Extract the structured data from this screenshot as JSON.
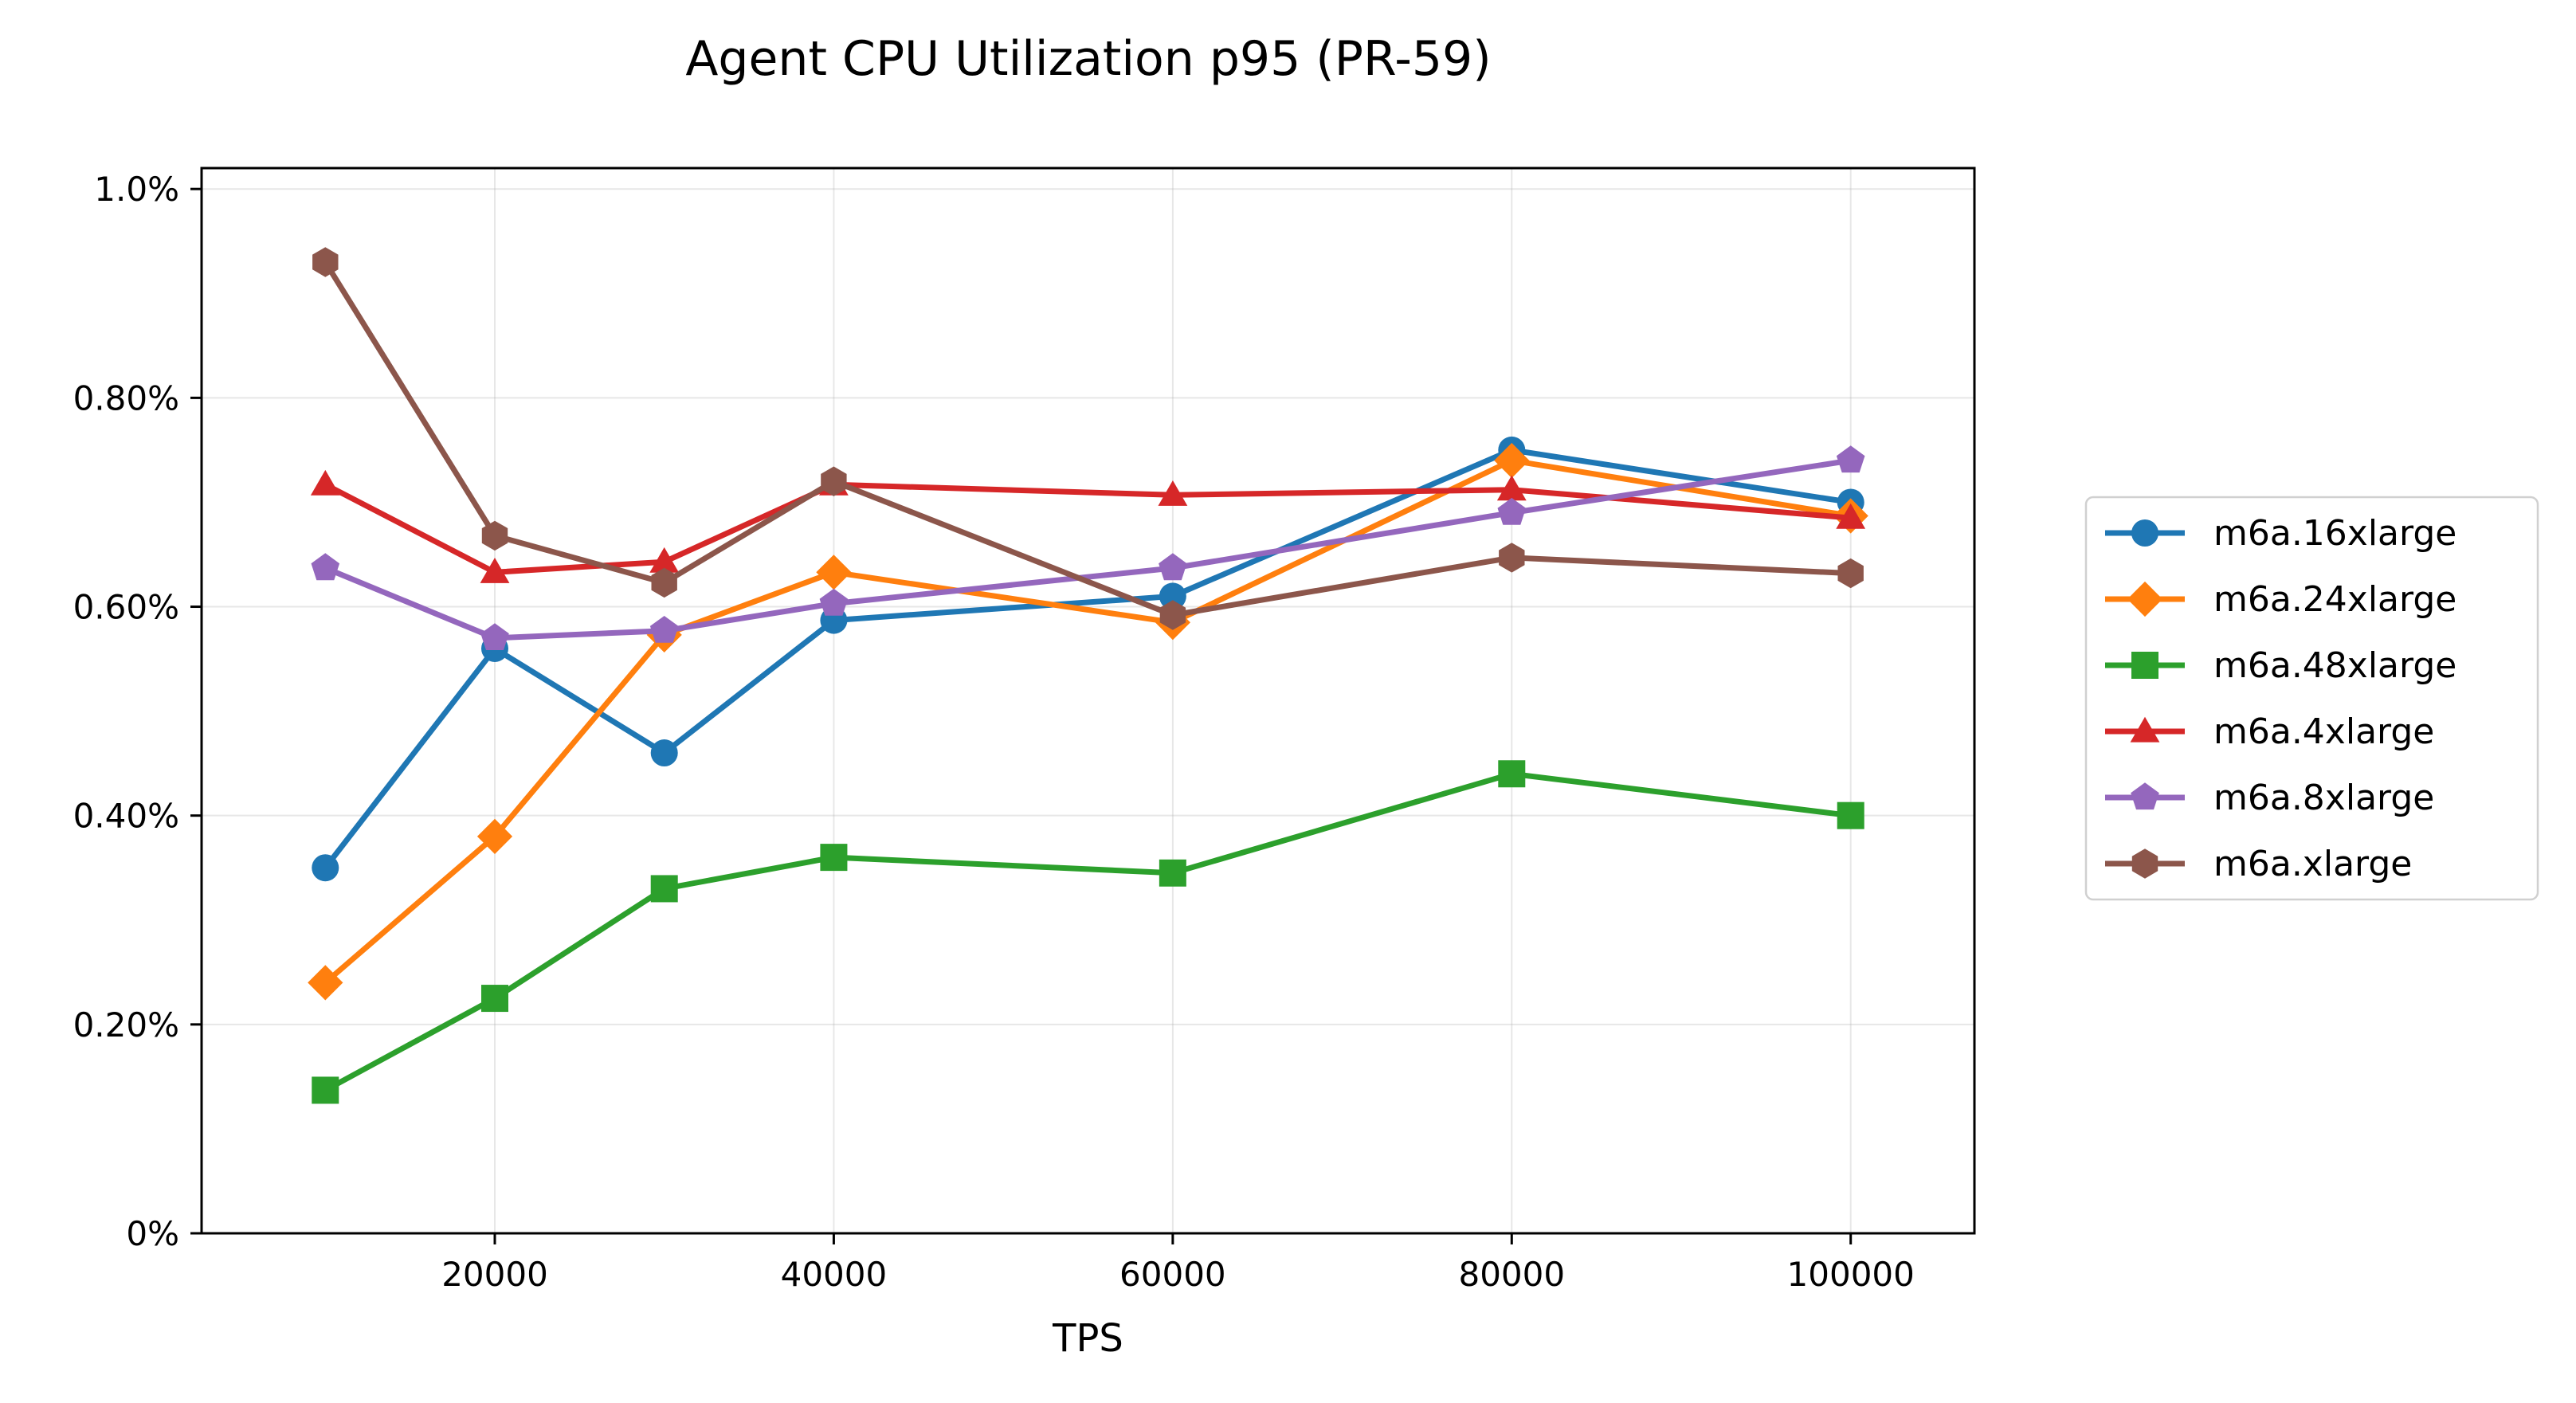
{
  "chart_data": {
    "type": "line",
    "title": "Agent CPU Utilization p95 (PR-59)",
    "xlabel": "TPS",
    "ylabel": "",
    "x": [
      10000,
      20000,
      30000,
      40000,
      60000,
      80000,
      100000
    ],
    "xlim": [
      2700,
      107300
    ],
    "ylim": [
      0,
      0.0102
    ],
    "xticks": [
      20000,
      40000,
      60000,
      80000,
      100000
    ],
    "xtick_labels": [
      "20000",
      "40000",
      "60000",
      "80000",
      "100000"
    ],
    "yticks": [
      0,
      0.002,
      0.004,
      0.006,
      0.008,
      0.01
    ],
    "ytick_labels": [
      "0%",
      "0.20%",
      "0.40%",
      "0.60%",
      "0.80%",
      "1.0%"
    ],
    "grid": true,
    "legend_position": "right, outside plot",
    "series": [
      {
        "name": "m6a.16xlarge",
        "color": "#1f77b4",
        "marker": "circle",
        "values": [
          0.0035,
          0.0056,
          0.0046,
          0.00587,
          0.0061,
          0.0075,
          0.007
        ]
      },
      {
        "name": "m6a.24xlarge",
        "color": "#ff7f0e",
        "marker": "diamond",
        "values": [
          0.0024,
          0.0038,
          0.00573,
          0.00633,
          0.00585,
          0.0074,
          0.00687
        ]
      },
      {
        "name": "m6a.48xlarge",
        "color": "#2ca02c",
        "marker": "square",
        "values": [
          0.00137,
          0.00225,
          0.0033,
          0.0036,
          0.00345,
          0.0044,
          0.004
        ]
      },
      {
        "name": "m6a.4xlarge",
        "color": "#d62728",
        "marker": "triangle",
        "values": [
          0.00717,
          0.00633,
          0.00643,
          0.00717,
          0.00707,
          0.00712,
          0.00685
        ]
      },
      {
        "name": "m6a.8xlarge",
        "color": "#9467bd",
        "marker": "pentagon",
        "values": [
          0.00637,
          0.0057,
          0.00577,
          0.00603,
          0.00637,
          0.0069,
          0.0074
        ]
      },
      {
        "name": "m6a.xlarge",
        "color": "#8c564b",
        "marker": "hexagon",
        "values": [
          0.0093,
          0.00668,
          0.00623,
          0.0072,
          0.00592,
          0.00647,
          0.00632
        ]
      }
    ]
  }
}
